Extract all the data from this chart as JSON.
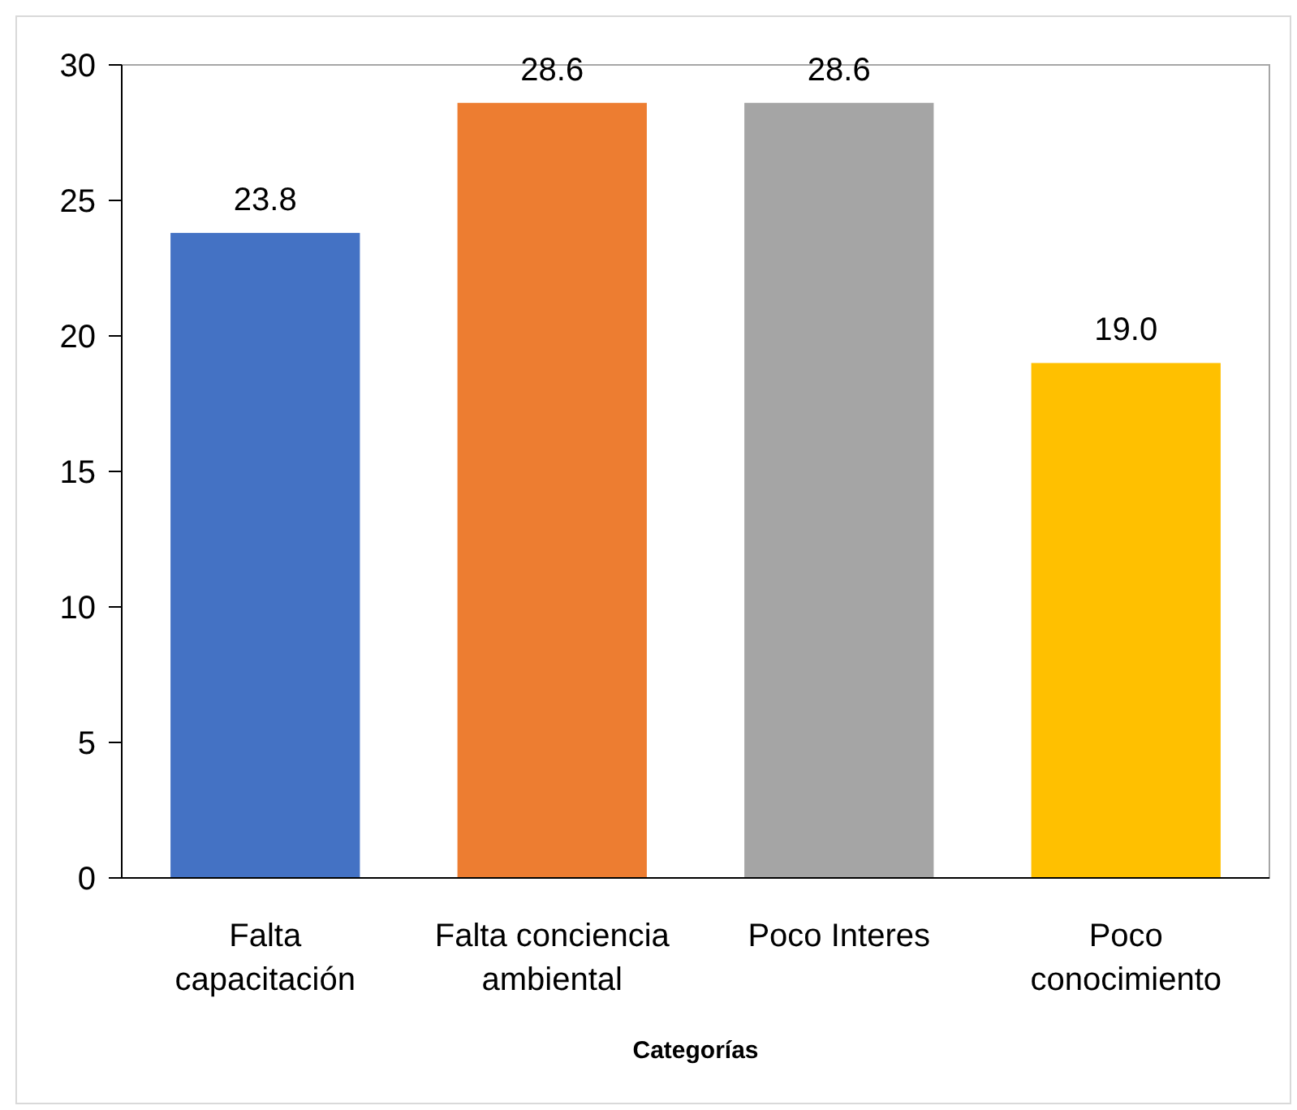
{
  "chart_data": {
    "type": "bar",
    "xlabel": "Categorías",
    "categories": [
      "Falta capacitación",
      "Falta conciencia ambiental",
      "Poco Interes",
      "Poco conocimiento"
    ],
    "values": [
      23.8,
      28.6,
      28.6,
      19.0
    ],
    "colors": [
      "#4472c4",
      "#ed7d31",
      "#a5a5a5",
      "#ffc000"
    ],
    "value_labels": [
      "23.8",
      "28.6",
      "28.6",
      "19.0"
    ],
    "ylim": [
      0,
      30
    ],
    "yticks": [
      0,
      5,
      10,
      15,
      20,
      25,
      30
    ],
    "grid": false
  }
}
